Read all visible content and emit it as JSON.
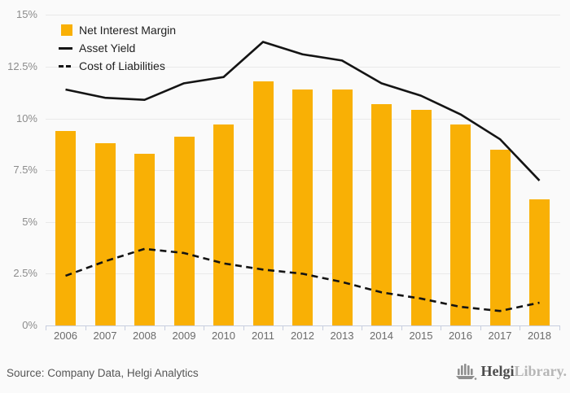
{
  "colors": {
    "bar": "#F9B005",
    "line": "#141414",
    "grid": "#e9e9e9",
    "axis": "#c7cedf",
    "background": "#fafafa"
  },
  "legend": {
    "items": [
      {
        "label": "Net Interest Margin",
        "swatch": "bar-square"
      },
      {
        "label": "Asset Yield",
        "swatch": "solid-line"
      },
      {
        "label": "Cost of Liabilities",
        "swatch": "dashed-line"
      }
    ]
  },
  "chart_data": {
    "type": "bar",
    "title": "",
    "xlabel": "",
    "ylabel": "",
    "grid": true,
    "legend_position": "top-left",
    "ylim": [
      0,
      15
    ],
    "y_ticks": [
      {
        "label": "0%",
        "value": 0
      },
      {
        "label": "2.5%",
        "value": 2.5
      },
      {
        "label": "5%",
        "value": 5
      },
      {
        "label": "7.5%",
        "value": 7.5
      },
      {
        "label": "10%",
        "value": 10
      },
      {
        "label": "12.5%",
        "value": 12.5
      },
      {
        "label": "15%",
        "value": 15
      }
    ],
    "categories": [
      "2006",
      "2007",
      "2008",
      "2009",
      "2010",
      "2011",
      "2012",
      "2013",
      "2014",
      "2015",
      "2016",
      "2017",
      "2018"
    ],
    "series": [
      {
        "name": "Net Interest Margin",
        "type": "bar",
        "color": "#F9B005",
        "values": [
          9.4,
          8.8,
          8.3,
          9.1,
          9.7,
          11.8,
          11.4,
          11.4,
          10.7,
          10.4,
          9.7,
          8.5,
          6.1
        ]
      },
      {
        "name": "Asset Yield",
        "type": "line",
        "style": "solid",
        "color": "#141414",
        "values": [
          11.4,
          11.0,
          10.9,
          11.7,
          12.0,
          13.7,
          13.1,
          12.8,
          11.7,
          11.1,
          10.2,
          9.0,
          7.0
        ]
      },
      {
        "name": "Cost of Liabilities",
        "type": "line",
        "style": "dashed",
        "color": "#141414",
        "values": [
          2.4,
          3.1,
          3.7,
          3.5,
          3.0,
          2.7,
          2.5,
          2.1,
          1.6,
          1.3,
          0.9,
          0.7,
          1.1
        ]
      }
    ]
  },
  "footer": {
    "source": "Source: Company Data, Helgi Analytics",
    "brand": {
      "bold": "Helgi",
      "light": "Library."
    },
    "logo_icon": "bar-skyline-icon"
  }
}
